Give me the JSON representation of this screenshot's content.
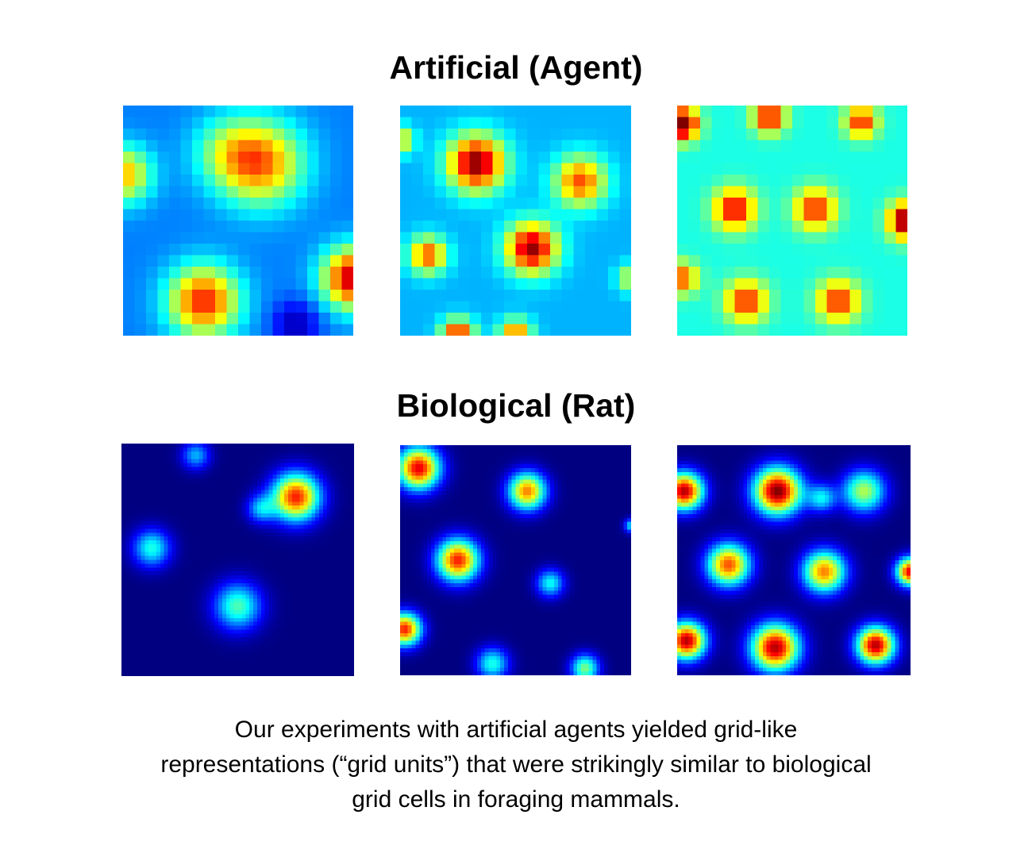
{
  "sections": [
    {
      "title": "Artificial (Agent)",
      "panel_count": 3,
      "colormap": "jet"
    },
    {
      "title": "Biological (Rat)",
      "panel_count": 3,
      "colormap": "jet"
    }
  ],
  "caption": {
    "lines": [
      "Our experiments with artificial agents yielded grid-like",
      "representations (“grid units”) that were strikingly similar to biological",
      "grid cells in foraging mammals."
    ]
  }
}
